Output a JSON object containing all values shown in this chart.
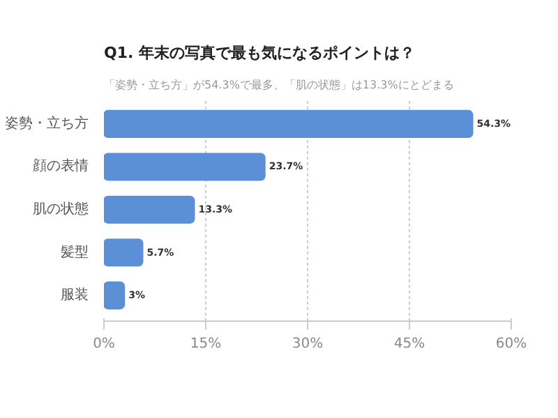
{
  "chart_data": {
    "type": "bar",
    "orientation": "horizontal",
    "title": "Q1. 年末の写真で最も気になるポイントは？",
    "subtitle": "「姿勢・立ち方」が54.3%で最多、「肌の状態」は13.3%にとどまる",
    "categories": [
      "姿勢・立ち方",
      "顔の表情",
      "肌の状態",
      "髪型",
      "服装"
    ],
    "values": [
      54.3,
      23.7,
      13.3,
      5.7,
      3
    ],
    "value_labels": [
      "54.3%",
      "23.7%",
      "13.3%",
      "5.7%",
      "3%"
    ],
    "color": "#5b8fd6",
    "xlim": [
      0,
      60
    ],
    "xticks": [
      {
        "value": 0,
        "label": "0%"
      },
      {
        "value": 15,
        "label": "15%"
      },
      {
        "value": 30,
        "label": "30%"
      },
      {
        "value": 45,
        "label": "45%"
      },
      {
        "value": 60,
        "label": "60%"
      }
    ],
    "grid": "x"
  }
}
